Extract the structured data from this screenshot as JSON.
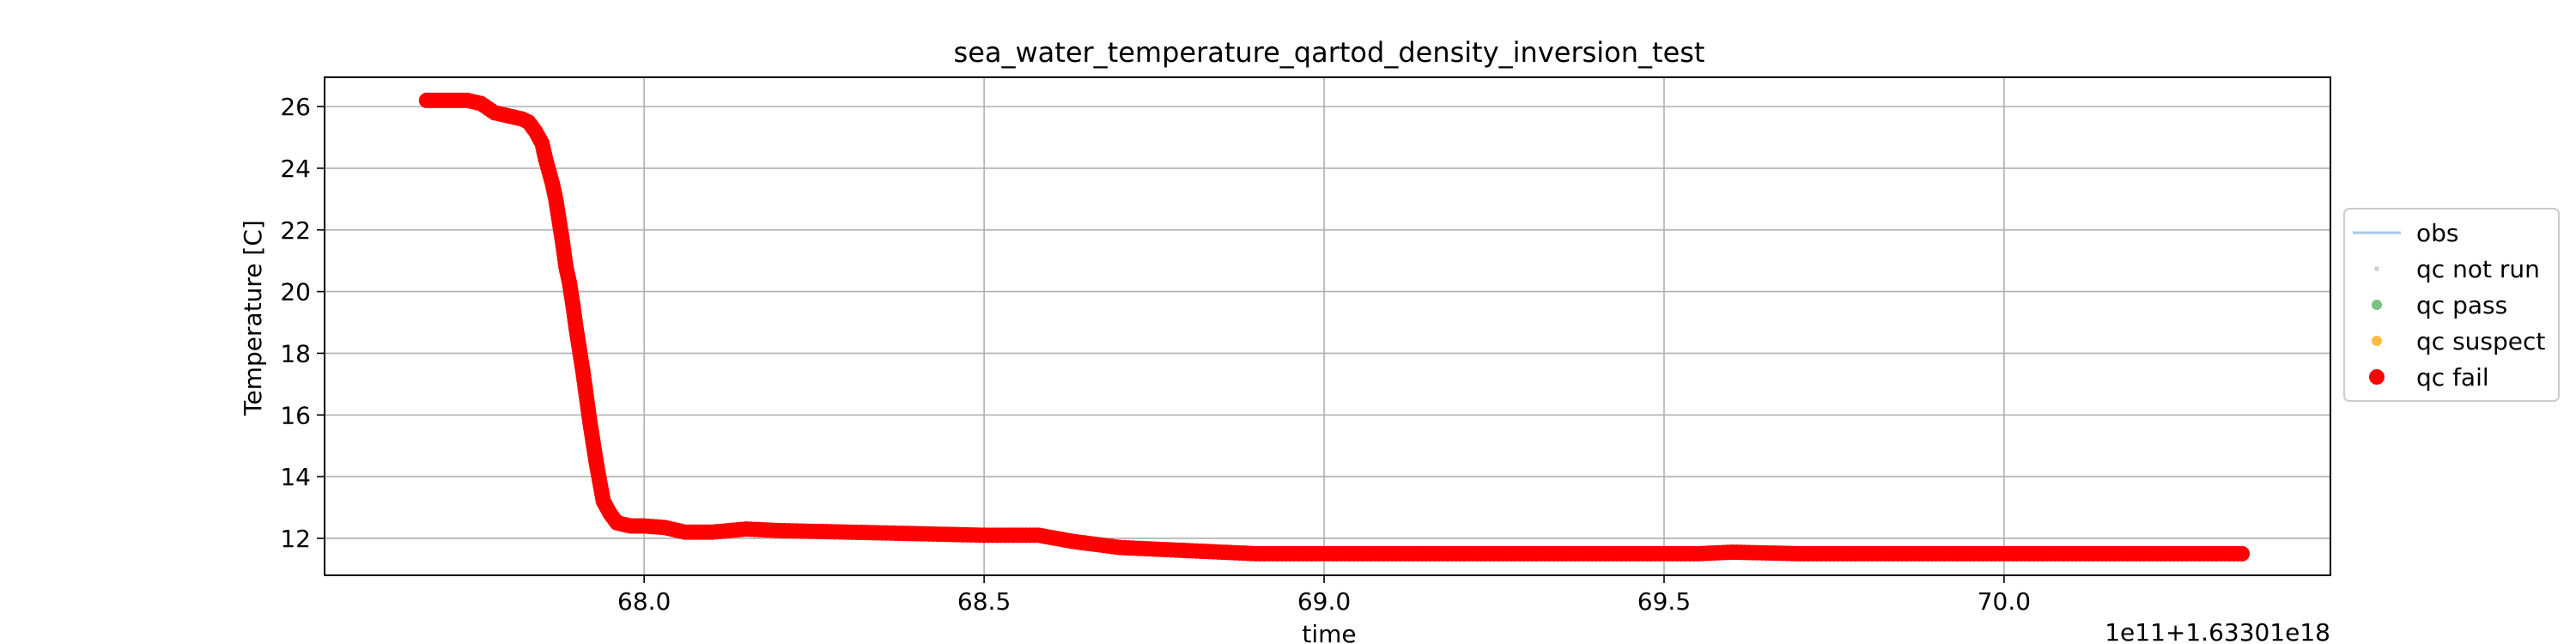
{
  "chart_data": {
    "type": "scatter",
    "title": "sea_water_temperature_qartod_density_inversion_test",
    "xlabel": "time",
    "ylabel": "Temperature [C]",
    "x_offset_label": "1e11+1.63301e18",
    "xlim": [
      67.53,
      70.48
    ],
    "ylim": [
      10.8,
      26.95
    ],
    "x_ticks": [
      68.0,
      68.5,
      69.0,
      69.5,
      70.0
    ],
    "x_tick_labels": [
      "68.0",
      "68.5",
      "69.0",
      "69.5",
      "70.0"
    ],
    "y_ticks": [
      12,
      14,
      16,
      18,
      20,
      22,
      24,
      26
    ],
    "y_tick_labels": [
      "12",
      "14",
      "16",
      "18",
      "20",
      "22",
      "24",
      "26"
    ],
    "grid": true,
    "legend": {
      "placement": "right-outside",
      "entries": [
        {
          "label": "obs",
          "marker": "line",
          "color": "#a6c8e6"
        },
        {
          "label": "qc not run",
          "marker": "small-dot",
          "color": "#d3d3d3"
        },
        {
          "label": "qc pass",
          "marker": "dot",
          "color": "#4caf50"
        },
        {
          "label": "qc suspect",
          "marker": "dot",
          "color": "#ffa500"
        },
        {
          "label": "qc fail",
          "marker": "big-dot",
          "color": "#ff0000"
        }
      ]
    },
    "series": [
      {
        "name": "qc fail",
        "color": "#ff0000",
        "points": [
          [
            67.68,
            26.2
          ],
          [
            67.7,
            26.2
          ],
          [
            67.72,
            26.2
          ],
          [
            67.74,
            26.2
          ],
          [
            67.76,
            26.1
          ],
          [
            67.78,
            25.8
          ],
          [
            67.8,
            25.7
          ],
          [
            67.82,
            25.6
          ],
          [
            67.83,
            25.5
          ],
          [
            67.84,
            25.2
          ],
          [
            67.85,
            24.8
          ],
          [
            67.855,
            24.3
          ],
          [
            67.86,
            23.9
          ],
          [
            67.865,
            23.5
          ],
          [
            67.87,
            23.0
          ],
          [
            67.875,
            22.3
          ],
          [
            67.88,
            21.6
          ],
          [
            67.885,
            20.8
          ],
          [
            67.89,
            20.3
          ],
          [
            67.895,
            19.6
          ],
          [
            67.9,
            18.8
          ],
          [
            67.905,
            18.1
          ],
          [
            67.91,
            17.4
          ],
          [
            67.915,
            16.6
          ],
          [
            67.92,
            15.8
          ],
          [
            67.925,
            15.1
          ],
          [
            67.93,
            14.4
          ],
          [
            67.935,
            13.8
          ],
          [
            67.94,
            13.2
          ],
          [
            67.95,
            12.8
          ],
          [
            67.96,
            12.5
          ],
          [
            67.98,
            12.4
          ],
          [
            68.0,
            12.4
          ],
          [
            68.03,
            12.35
          ],
          [
            68.06,
            12.2
          ],
          [
            68.1,
            12.2
          ],
          [
            68.15,
            12.3
          ],
          [
            68.2,
            12.25
          ],
          [
            68.3,
            12.2
          ],
          [
            68.4,
            12.15
          ],
          [
            68.5,
            12.1
          ],
          [
            68.58,
            12.1
          ],
          [
            68.63,
            11.9
          ],
          [
            68.7,
            11.7
          ],
          [
            68.8,
            11.6
          ],
          [
            68.9,
            11.5
          ],
          [
            69.0,
            11.5
          ],
          [
            69.2,
            11.5
          ],
          [
            69.4,
            11.5
          ],
          [
            69.55,
            11.5
          ],
          [
            69.6,
            11.55
          ],
          [
            69.7,
            11.5
          ],
          [
            69.8,
            11.5
          ],
          [
            70.0,
            11.5
          ],
          [
            70.2,
            11.5
          ],
          [
            70.35,
            11.5
          ]
        ]
      }
    ]
  }
}
